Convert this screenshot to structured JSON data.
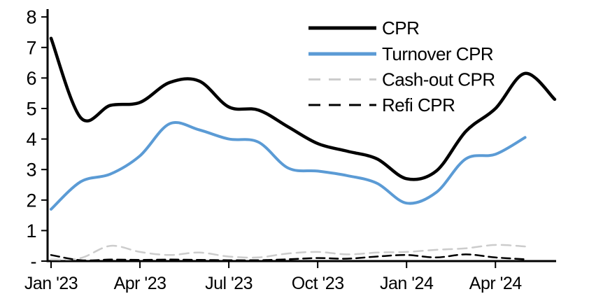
{
  "chart_data": {
    "type": "line",
    "title": "",
    "xlabel": "",
    "ylabel": "",
    "ylim": [
      0,
      8
    ],
    "grid": false,
    "legend_position": "top-right-inside",
    "x_unit": "month",
    "months": [
      "Jan '23",
      "Feb '23",
      "Mar '23",
      "Apr '23",
      "May '23",
      "Jun '23",
      "Jul '23",
      "Aug '23",
      "Sep '23",
      "Oct '23",
      "Nov '23",
      "Dec '23",
      "Jan '24",
      "Feb '24",
      "Mar '24",
      "Apr '24",
      "May '24",
      "Jun '24"
    ],
    "x_tick_labels": [
      "Jan '23",
      "Apr '23",
      "Jul '23",
      "Oct '23",
      "Jan '24",
      "Apr '24"
    ],
    "x_tick_month_indices": [
      0,
      3,
      6,
      9,
      12,
      15
    ],
    "y_ticks": [
      {
        "value": 8,
        "label": "8"
      },
      {
        "value": 7,
        "label": "7"
      },
      {
        "value": 6,
        "label": "6"
      },
      {
        "value": 5,
        "label": "5"
      },
      {
        "value": 4,
        "label": "4"
      },
      {
        "value": 3,
        "label": "3"
      },
      {
        "value": 2,
        "label": "2"
      },
      {
        "value": 1,
        "label": "1"
      },
      {
        "value": 0,
        "label": "-"
      }
    ],
    "series": [
      {
        "name": "CPR",
        "color": "#000000",
        "style": "solid",
        "line_width": 4.5,
        "values": [
          7.3,
          4.7,
          5.1,
          5.2,
          5.85,
          5.9,
          5.05,
          4.95,
          4.4,
          3.85,
          3.6,
          3.35,
          2.7,
          2.95,
          4.25,
          5.0,
          6.15,
          5.3
        ]
      },
      {
        "name": "Turnover CPR",
        "color": "#5B9BD5",
        "style": "solid",
        "line_width": 4,
        "values": [
          1.7,
          2.6,
          2.85,
          3.45,
          4.5,
          4.3,
          4.0,
          3.9,
          3.05,
          2.95,
          2.8,
          2.55,
          1.9,
          2.25,
          3.35,
          3.5,
          4.05
        ]
      },
      {
        "name": "Cash-out CPR",
        "color": "#CCCCCC",
        "style": "dashed",
        "line_width": 2.5,
        "values": [
          0.05,
          0.1,
          0.5,
          0.3,
          0.2,
          0.28,
          0.15,
          0.12,
          0.25,
          0.3,
          0.22,
          0.28,
          0.3,
          0.37,
          0.42,
          0.53,
          0.48
        ]
      },
      {
        "name": "Refi CPR",
        "color": "#000000",
        "style": "dashed",
        "line_width": 2.5,
        "values": [
          0.2,
          0.03,
          0.05,
          0.04,
          0.05,
          0.04,
          0.03,
          0.03,
          0.06,
          0.1,
          0.08,
          0.15,
          0.2,
          0.12,
          0.22,
          0.12,
          0.06
        ]
      }
    ]
  }
}
